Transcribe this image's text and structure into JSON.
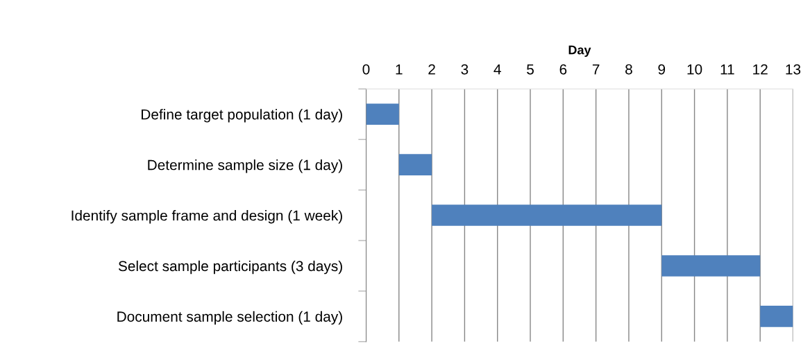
{
  "chart_data": {
    "type": "bar",
    "orientation": "horizontal",
    "xlabel": "Day",
    "categories": [
      "Define target population (1 day)",
      "Determine sample size (1 day)",
      "Identify sample frame and design (1 week)",
      "Select sample participants (3 days)",
      "Document sample selection (1 day)"
    ],
    "base": [
      0,
      1,
      2,
      9,
      12
    ],
    "values": [
      1,
      1,
      7,
      3,
      1
    ],
    "color": "#4f81bd",
    "xlim": [
      0,
      13
    ],
    "xticks": [
      0,
      1,
      2,
      3,
      4,
      5,
      6,
      7,
      8,
      9,
      10,
      11,
      12,
      13
    ],
    "grid": "x",
    "legend": false
  }
}
